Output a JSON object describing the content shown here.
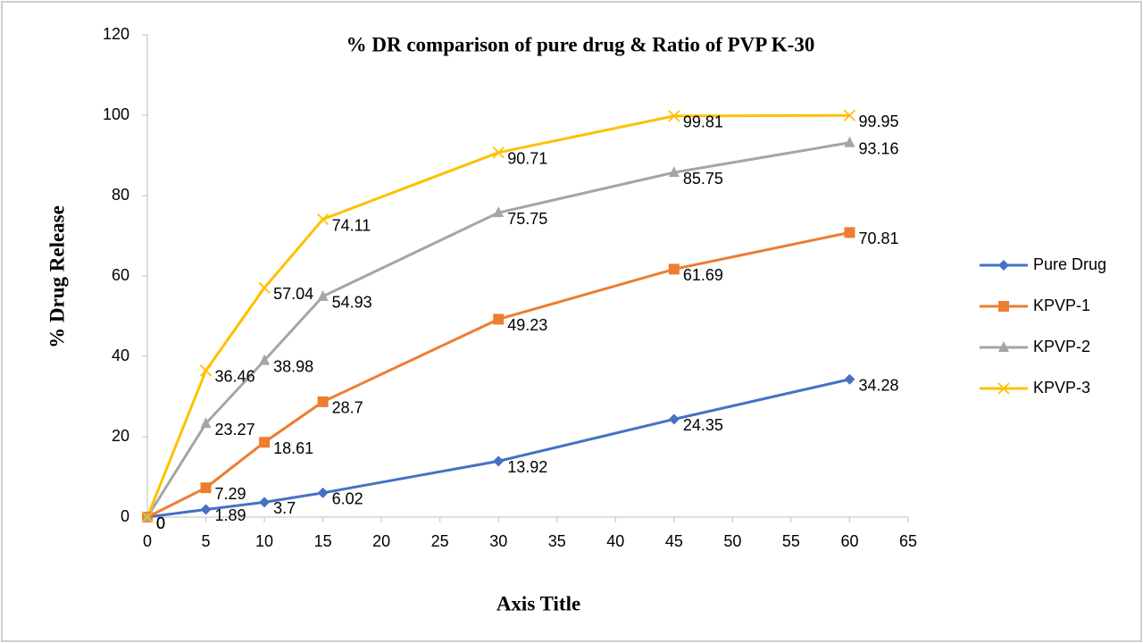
{
  "chart_data": {
    "type": "line",
    "title": "% DR comparison of pure drug & Ratio of PVP K-30",
    "x_label": "Axis Title",
    "y_label": "% Drug Release",
    "x": [
      0,
      5,
      10,
      15,
      30,
      45,
      60
    ],
    "series": [
      {
        "name": "Pure Drug",
        "color": "#4472c4",
        "marker": "diamond",
        "values": [
          0,
          1.89,
          3.7,
          6.02,
          13.92,
          24.35,
          34.28
        ]
      },
      {
        "name": "KPVP-1",
        "color": "#ed7d31",
        "marker": "square",
        "values": [
          0,
          7.29,
          18.61,
          28.7,
          49.23,
          61.69,
          70.81
        ]
      },
      {
        "name": "KPVP-2",
        "color": "#a5a5a5",
        "marker": "triangle",
        "values": [
          0,
          23.27,
          38.98,
          54.93,
          75.75,
          85.75,
          93.16
        ]
      },
      {
        "name": "KPVP-3",
        "color": "#ffc000",
        "marker": "x",
        "values": [
          0,
          36.46,
          57.04,
          74.11,
          90.71,
          99.81,
          99.95
        ]
      }
    ],
    "xlim": [
      0,
      65
    ],
    "xticks": [
      0,
      5,
      10,
      15,
      20,
      25,
      30,
      35,
      40,
      45,
      50,
      55,
      60,
      65
    ],
    "ylim": [
      0,
      120
    ],
    "yticks": [
      0,
      20,
      40,
      60,
      80,
      100,
      120
    ],
    "grid": false,
    "data_labels": true,
    "legend": "right"
  }
}
